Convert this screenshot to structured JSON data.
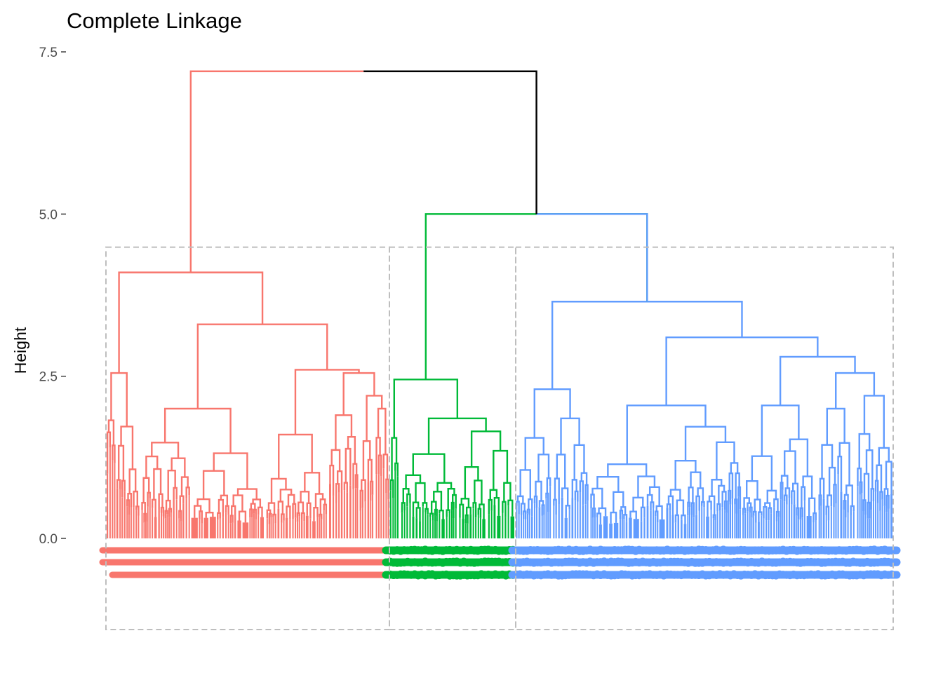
{
  "chart_data": {
    "type": "dendrogram",
    "title": "Complete Linkage",
    "xlabel": "",
    "ylabel": "Height",
    "ylim": [
      -1.4,
      7.5
    ],
    "y_ticks": [
      {
        "value": 7.5,
        "label": "7.5"
      },
      {
        "value": 5.0,
        "label": "5.0"
      },
      {
        "value": 2.5,
        "label": "2.5"
      },
      {
        "value": 0.0,
        "label": "0.0"
      }
    ],
    "grid": false,
    "legend": "none",
    "k_clusters": 3,
    "cut_height": 4.5,
    "root_merge_height": 7.2,
    "root_color": "#000000",
    "clusters": [
      {
        "color": "#F8766D",
        "leaf_label_shape": "text",
        "merge_height": 4.1,
        "subclusters": [
          {
            "merge_height": 2.55,
            "sizes": [
              0.28,
              0.72
            ]
          },
          {
            "merge_height": 3.3,
            "children": [
              {
                "merge_height": 2.0,
                "sizes": [
                  0.4,
                  0.6
                ]
              },
              {
                "merge_height": 2.6,
                "children": [
                  {
                    "merge_height": 1.6,
                    "sizes": [
                      0.5,
                      0.5
                    ]
                  },
                  {
                    "merge_height": 2.55,
                    "children": [
                      {
                        "merge_height": 1.9,
                        "sizes": [
                          0.5,
                          0.5
                        ]
                      },
                      {
                        "merge_height": 2.2,
                        "children": [
                          {
                            "merge_height": 1.5,
                            "sizes": [
                              0.5,
                              0.5
                            ]
                          },
                          {
                            "merge_height": 2.0,
                            "sizes": [
                              0.5,
                              0.5
                            ]
                          }
                        ]
                      }
                    ]
                  }
                ]
              }
            ]
          }
        ]
      },
      {
        "color": "#00BA38",
        "leaf_label_shape": "circle",
        "merge_height": 2.45,
        "subclusters": [
          {
            "merge_height": 1.55,
            "sizes": [
              0.5,
              0.5
            ]
          },
          {
            "merge_height": 1.85,
            "children": [
              {
                "merge_height": 1.3,
                "sizes": [
                  0.5,
                  0.5
                ]
              },
              {
                "merge_height": 1.65,
                "children": [
                  {
                    "merge_height": 1.1,
                    "sizes": [
                      0.5,
                      0.5
                    ]
                  },
                  {
                    "merge_height": 1.35,
                    "sizes": [
                      0.5,
                      0.5
                    ]
                  }
                ]
              }
            ]
          }
        ]
      },
      {
        "color": "#619CFF",
        "leaf_label_shape": "circle",
        "merge_height": 3.65,
        "subclusters": [
          {
            "merge_height": 2.3,
            "children": [
              {
                "merge_height": 1.55,
                "sizes": [
                  0.5,
                  0.5
                ]
              },
              {
                "merge_height": 1.85,
                "sizes": [
                  0.5,
                  0.5
                ]
              }
            ]
          },
          {
            "merge_height": 3.1,
            "children": [
              {
                "merge_height": 2.05,
                "sizes": [
                  0.5,
                  0.5
                ]
              },
              {
                "merge_height": 2.8,
                "children": [
                  {
                    "merge_height": 2.05,
                    "sizes": [
                      0.5,
                      0.5
                    ]
                  },
                  {
                    "merge_height": 2.55,
                    "children": [
                      {
                        "merge_height": 2.0,
                        "sizes": [
                          0.5,
                          0.5
                        ]
                      },
                      {
                        "merge_height": 2.2,
                        "sizes": [
                          0.5,
                          0.5
                        ]
                      }
                    ]
                  }
                ]
              }
            ]
          }
        ]
      }
    ],
    "dashed_box_color": "#BEBEBE",
    "axis_color": "#333333"
  }
}
